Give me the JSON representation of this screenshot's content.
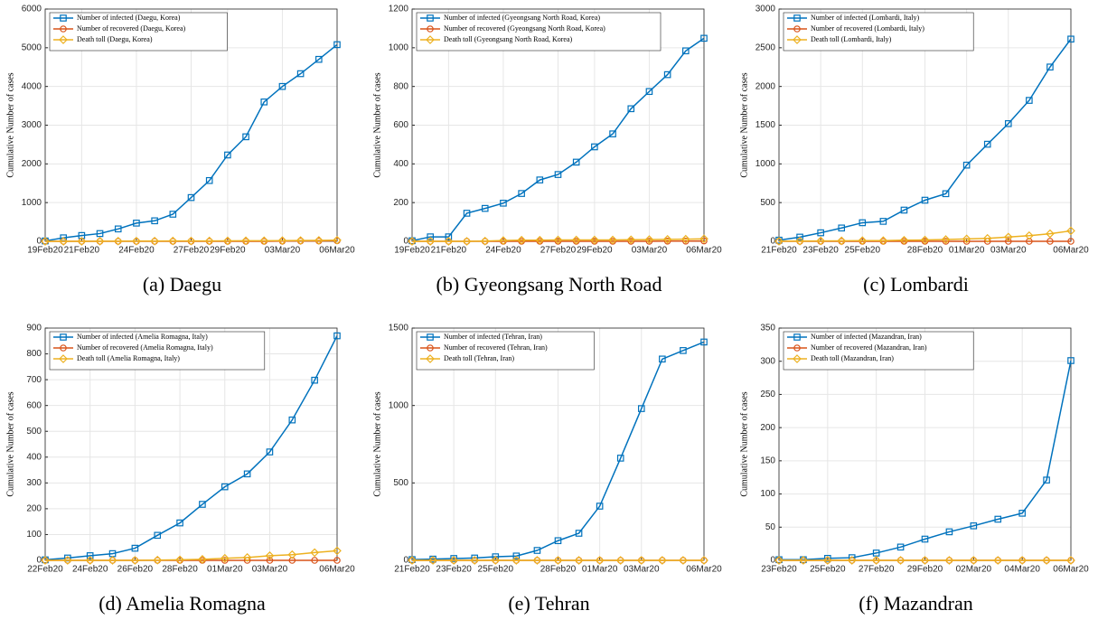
{
  "chart_data": [
    {
      "type": "line",
      "caption": "(a) Daegu",
      "ylabel": "Cumulative Number of cases",
      "categories": [
        "19Feb20",
        null,
        "21Feb20",
        null,
        null,
        "24Feb20",
        null,
        null,
        "27Feb20",
        null,
        "29Feb20",
        null,
        null,
        "03Mar20",
        null,
        null,
        "06Mar20"
      ],
      "ylim": [
        0,
        6000
      ],
      "yticks": [
        0,
        1000,
        2000,
        3000,
        4000,
        5000,
        6000
      ],
      "grid": true,
      "series": [
        {
          "name": "Number of infected (Daegu, Korea)",
          "color": "#0072bd",
          "marker": "square",
          "values": [
            10,
            90,
            150,
            200,
            320,
            470,
            530,
            700,
            1130,
            1570,
            2230,
            2700,
            3600,
            4000,
            4330,
            4700,
            5080
          ]
        },
        {
          "name": "Number of recovered (Daegu, Korea)",
          "color": "#d95319",
          "marker": "circle",
          "values": [
            0,
            0,
            0,
            0,
            0,
            0,
            0,
            0,
            0,
            0,
            0,
            0,
            0,
            5,
            10,
            10,
            15
          ]
        },
        {
          "name": "Death toll (Daegu, Korea)",
          "color": "#edb120",
          "marker": "diamond",
          "values": [
            0,
            0,
            0,
            2,
            4,
            5,
            6,
            8,
            9,
            10,
            12,
            14,
            16,
            18,
            20,
            24,
            28
          ]
        }
      ]
    },
    {
      "type": "line",
      "caption": "(b) Gyeongsang North Road",
      "ylabel": "Cumulative Number of cases",
      "categories": [
        "19Feb20",
        null,
        "21Feb20",
        null,
        null,
        "24Feb20",
        null,
        null,
        "27Feb20",
        null,
        "29Feb20",
        null,
        null,
        "03Mar20",
        null,
        null,
        "06Mar20"
      ],
      "ylim": [
        0,
        1200
      ],
      "yticks": [
        0,
        200,
        400,
        600,
        800,
        1000,
        1200
      ],
      "grid": true,
      "series": [
        {
          "name": "Number of infected (Gyeongsang North Road, Korea)",
          "color": "#0072bd",
          "marker": "square",
          "values": [
            3,
            23,
            23,
            145,
            170,
            197,
            247,
            317,
            345,
            409,
            488,
            555,
            685,
            774,
            861,
            984,
            1049
          ]
        },
        {
          "name": "Number of recovered (Gyeongsang North Road, Korea)",
          "color": "#d95319",
          "marker": "circle",
          "values": [
            0,
            0,
            0,
            0,
            0,
            0,
            0,
            0,
            0,
            0,
            0,
            0,
            0,
            0,
            1,
            1,
            2
          ]
        },
        {
          "name": "Death toll (Gyeongsang North Road, Korea)",
          "color": "#edb120",
          "marker": "diamond",
          "values": [
            0,
            0,
            0,
            0,
            1,
            4,
            6,
            6,
            7,
            7,
            7,
            7,
            8,
            9,
            10,
            11,
            13
          ]
        }
      ]
    },
    {
      "type": "line",
      "caption": "(c) Lombardi",
      "ylabel": "Cumulative Number of cases",
      "categories": [
        "21Feb20",
        null,
        "23Feb20",
        null,
        "25Feb20",
        null,
        null,
        "28Feb20",
        null,
        "01Mar20",
        null,
        "03Mar20",
        null,
        null,
        "06Mar20"
      ],
      "ylim": [
        0,
        3000
      ],
      "yticks": [
        0,
        500,
        1000,
        1500,
        2000,
        2500,
        3000
      ],
      "grid": true,
      "series": [
        {
          "name": "Number of infected (Lombardi, Italy)",
          "color": "#0072bd",
          "marker": "square",
          "values": [
            15,
            54,
            110,
            172,
            240,
            258,
            403,
            531,
            615,
            984,
            1254,
            1520,
            1820,
            2251,
            2612
          ]
        },
        {
          "name": "Number of recovered (Lombardi, Italy)",
          "color": "#d95319",
          "marker": "circle",
          "values": [
            0,
            0,
            0,
            0,
            0,
            0,
            0,
            0,
            0,
            0,
            0,
            0,
            0,
            0,
            0
          ]
        },
        {
          "name": "Death toll (Lombardi, Italy)",
          "color": "#edb120",
          "marker": "diamond",
          "values": [
            1,
            3,
            5,
            6,
            9,
            9,
            14,
            17,
            23,
            31,
            38,
            55,
            73,
            98,
            135
          ]
        }
      ]
    },
    {
      "type": "line",
      "caption": "(d) Amelia Romagna",
      "ylabel": "Cumulative Number of cases",
      "categories": [
        "22Feb20",
        null,
        "24Feb20",
        null,
        "26Feb20",
        null,
        "28Feb20",
        null,
        "01Mar20",
        null,
        "03Mar20",
        null,
        null,
        "06Mar20"
      ],
      "ylim": [
        0,
        900
      ],
      "yticks": [
        0,
        100,
        200,
        300,
        400,
        500,
        600,
        700,
        800,
        900
      ],
      "grid": true,
      "series": [
        {
          "name": "Number of infected (Amelia Romagna, Italy)",
          "color": "#0072bd",
          "marker": "square",
          "values": [
            2,
            9,
            18,
            26,
            47,
            97,
            145,
            217,
            285,
            335,
            420,
            544,
            698,
            870
          ]
        },
        {
          "name": "Number of recovered (Amelia Romagna, Italy)",
          "color": "#d95319",
          "marker": "circle",
          "values": [
            0,
            0,
            0,
            0,
            0,
            0,
            0,
            0,
            0,
            0,
            0,
            0,
            0,
            0
          ]
        },
        {
          "name": "Death toll (Amelia Romagna, Italy)",
          "color": "#edb120",
          "marker": "diamond",
          "values": [
            0,
            0,
            0,
            0,
            0,
            1,
            2,
            4,
            8,
            11,
            18,
            22,
            30,
            37
          ]
        }
      ]
    },
    {
      "type": "line",
      "caption": "(e) Tehran",
      "ylabel": "Cumulative Number of cases",
      "categories": [
        "21Feb20",
        null,
        "23Feb20",
        null,
        "25Feb20",
        null,
        null,
        "28Feb20",
        null,
        "01Mar20",
        null,
        "03Mar20",
        null,
        null,
        "06Mar20"
      ],
      "ylim": [
        0,
        1500
      ],
      "yticks": [
        0,
        500,
        1000,
        1500
      ],
      "grid": true,
      "series": [
        {
          "name": "Number of infected (Tehran, Iran)",
          "color": "#0072bd",
          "marker": "square",
          "values": [
            5,
            8,
            12,
            15,
            23,
            28,
            64,
            127,
            175,
            350,
            660,
            980,
            1300,
            1355,
            1410
          ]
        },
        {
          "name": "Number of recovered (Tehran, Iran)",
          "color": "#d95319",
          "marker": "circle",
          "values": [
            0,
            0,
            0,
            0,
            0,
            0,
            0,
            0,
            0,
            0,
            0,
            0,
            0,
            0,
            0
          ]
        },
        {
          "name": "Death toll (Tehran, Iran)",
          "color": "#edb120",
          "marker": "diamond",
          "values": [
            0,
            0,
            0,
            0,
            0,
            0,
            0,
            0,
            0,
            0,
            0,
            0,
            0,
            0,
            0
          ]
        }
      ]
    },
    {
      "type": "line",
      "caption": "(f) Mazandran",
      "ylabel": "Cumulative Number of cases",
      "categories": [
        "23Feb20",
        null,
        "25Feb20",
        null,
        "27Feb20",
        null,
        "29Feb20",
        null,
        "02Mar20",
        null,
        "04Mar20",
        null,
        "06Mar20"
      ],
      "ylim": [
        0,
        350
      ],
      "yticks": [
        0,
        50,
        100,
        150,
        200,
        250,
        300,
        350
      ],
      "grid": true,
      "series": [
        {
          "name": "Number of infected (Mazandran, Iran)",
          "color": "#0072bd",
          "marker": "square",
          "values": [
            1,
            1,
            3,
            4,
            11,
            20,
            32,
            43,
            52,
            62,
            71,
            121,
            301
          ]
        },
        {
          "name": "Number of recovered (Mazandran, Iran)",
          "color": "#d95319",
          "marker": "circle",
          "values": [
            0,
            0,
            0,
            0,
            0,
            0,
            0,
            0,
            0,
            0,
            0,
            0,
            0
          ]
        },
        {
          "name": "Death toll (Mazandran, Iran)",
          "color": "#edb120",
          "marker": "diamond",
          "values": [
            0,
            0,
            0,
            0,
            0,
            0,
            0,
            0,
            0,
            0,
            0,
            0,
            0
          ]
        }
      ]
    }
  ]
}
